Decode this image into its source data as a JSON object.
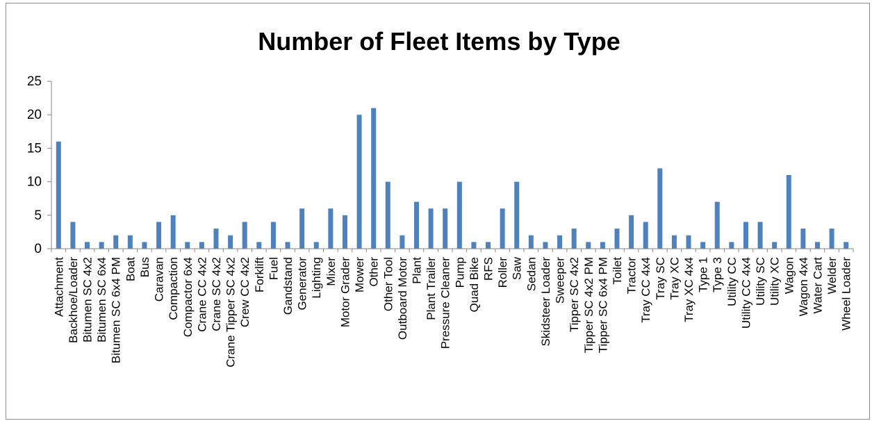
{
  "chart_data": {
    "type": "bar",
    "title": "Number of Fleet Items by Type",
    "xlabel": "",
    "ylabel": "",
    "ylim": [
      0,
      25
    ],
    "yticks": [
      "0",
      "5",
      "10",
      "15",
      "20",
      "25"
    ],
    "grid": false,
    "legend": "none",
    "bar_color": "#4F81BD",
    "categories": [
      "Attachment",
      "Backhoe/Loader",
      "Bitumen SC 4x2",
      "Bitumen SC 6x4",
      "Bitumen SC 6x4 PM",
      "Boat",
      "Bus",
      "Caravan",
      "Compaction",
      "Compactor 6x4",
      "Crane CC 4x2",
      "Crane SC 4x2",
      "Crane Tipper SC 4x2",
      "Crew CC 4x2",
      "Forklift",
      "Fuel",
      "Gandstand",
      "Generator",
      "Lighting",
      "Mixer",
      "Motor Grader",
      "Mower",
      "Other",
      "Other Tool",
      "Outboard Motor",
      "Plant",
      "Plant Trailer",
      "Pressure Cleaner",
      "Pump",
      "Quad Bike",
      "RFS",
      "Roller",
      "Saw",
      "Sedan",
      "Skidsteer Loader",
      "Sweeper",
      "Tipper SC 4x2",
      "Tipper SC 4x2 PM",
      "Tipper SC 6x4 PM",
      "Toilet",
      "Tractor",
      "Tray CC 4x4",
      "Tray SC",
      "Tray XC",
      "Tray XC 4x4",
      "Type 1",
      "Type 3",
      "Utility CC",
      "Utility CC 4x4",
      "Utility SC",
      "Utility XC",
      "Wagon",
      "Wagon 4x4",
      "Water Cart",
      "Welder",
      "Wheel Loader"
    ],
    "values": [
      16,
      4,
      1,
      1,
      2,
      2,
      1,
      4,
      5,
      1,
      1,
      3,
      2,
      4,
      1,
      4,
      1,
      6,
      1,
      6,
      5,
      20,
      21,
      10,
      2,
      7,
      6,
      6,
      10,
      1,
      1,
      6,
      10,
      2,
      1,
      2,
      3,
      1,
      1,
      3,
      5,
      4,
      12,
      2,
      2,
      1,
      7,
      1,
      4,
      4,
      1,
      11,
      3,
      1,
      3,
      1
    ]
  }
}
